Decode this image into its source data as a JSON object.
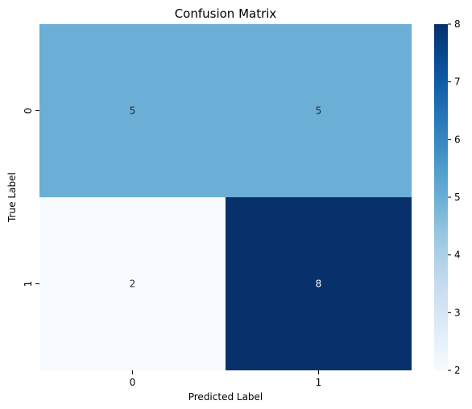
{
  "chart_data": {
    "type": "heatmap",
    "title": "Confusion Matrix",
    "xlabel": "Predicted Label",
    "ylabel": "True Label",
    "x_categories": [
      "0",
      "1"
    ],
    "y_categories": [
      "0",
      "1"
    ],
    "values": [
      [
        5,
        5
      ],
      [
        2,
        8
      ]
    ],
    "colormap": "Blues",
    "colorbar": {
      "min": 2,
      "max": 8,
      "ticks": [
        "2",
        "3",
        "4",
        "5",
        "6",
        "7",
        "8"
      ]
    },
    "grid": false
  }
}
